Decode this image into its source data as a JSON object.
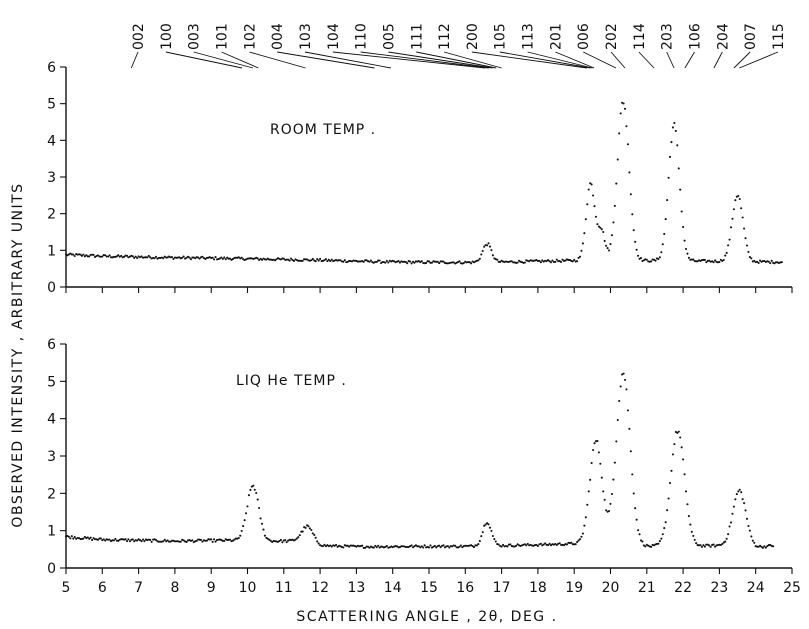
{
  "chart_data": {
    "type": "scatter",
    "xlabel": "SCATTERING ANGLE , 2θ, DEG .",
    "ylabel": "OBSERVED INTENSITY , ARBITRARY UNITS",
    "xlim": [
      5,
      25
    ],
    "xticks": [
      5,
      6,
      7,
      8,
      9,
      10,
      11,
      12,
      13,
      14,
      15,
      16,
      17,
      18,
      19,
      20,
      21,
      22,
      23,
      24,
      25
    ],
    "reflections": [
      {
        "label": "002",
        "angle": 6.8
      },
      {
        "label": "100",
        "angle": 9.85
      },
      {
        "label": "003",
        "angle": 10.15
      },
      {
        "label": "101",
        "angle": 10.3
      },
      {
        "label": "102",
        "angle": 11.6
      },
      {
        "label": "004",
        "angle": 13.5
      },
      {
        "label": "103",
        "angle": 13.95
      },
      {
        "label": "104",
        "angle": 16.55
      },
      {
        "label": "110",
        "angle": 16.65
      },
      {
        "label": "005",
        "angle": 16.75
      },
      {
        "label": "111",
        "angle": 16.85
      },
      {
        "label": "112",
        "angle": 17.0
      },
      {
        "label": "200",
        "angle": 19.35
      },
      {
        "label": "105",
        "angle": 19.45
      },
      {
        "label": "113",
        "angle": 19.5
      },
      {
        "label": "201",
        "angle": 19.55
      },
      {
        "label": "006",
        "angle": 20.15
      },
      {
        "label": "202",
        "angle": 20.4
      },
      {
        "label": "114",
        "angle": 21.2
      },
      {
        "label": "203",
        "angle": 21.75
      },
      {
        "label": "106",
        "angle": 22.05
      },
      {
        "label": "204",
        "angle": 22.85
      },
      {
        "label": "007",
        "angle": 23.4
      },
      {
        "label": "115",
        "angle": 23.55
      }
    ],
    "panels": [
      {
        "label": "ROOM TEMP .",
        "ylim": [
          0,
          6
        ],
        "yticks": [
          0,
          1,
          2,
          3,
          4,
          5,
          6
        ],
        "baseline": [
          [
            5.0,
            0.88
          ],
          [
            6.0,
            0.84
          ],
          [
            8.0,
            0.8
          ],
          [
            10.0,
            0.77
          ],
          [
            12.0,
            0.73
          ],
          [
            14.0,
            0.68
          ],
          [
            16.0,
            0.67
          ],
          [
            17.0,
            0.68
          ],
          [
            18.0,
            0.7
          ],
          [
            19.0,
            0.72
          ],
          [
            20.0,
            0.72
          ],
          [
            21.0,
            0.72
          ],
          [
            23.0,
            0.7
          ],
          [
            24.7,
            0.68
          ]
        ],
        "peaks": [
          {
            "center": 16.6,
            "height": 0.5,
            "width": 0.12
          },
          {
            "center": 19.45,
            "height": 2.1,
            "width": 0.12
          },
          {
            "center": 19.75,
            "height": 0.8,
            "width": 0.1
          },
          {
            "center": 20.35,
            "height": 4.35,
            "width": 0.16
          },
          {
            "center": 21.75,
            "height": 3.7,
            "width": 0.15
          },
          {
            "center": 23.5,
            "height": 1.82,
            "width": 0.15
          }
        ],
        "x_start": 5.0,
        "x_end": 24.75
      },
      {
        "label": "LIQ He TEMP .",
        "ylim": [
          0,
          6
        ],
        "yticks": [
          0,
          1,
          2,
          3,
          4,
          5,
          6
        ],
        "baseline": [
          [
            5.0,
            0.84
          ],
          [
            6.0,
            0.76
          ],
          [
            8.0,
            0.72
          ],
          [
            9.5,
            0.74
          ],
          [
            10.6,
            0.72
          ],
          [
            11.3,
            0.72
          ],
          [
            12.0,
            0.6
          ],
          [
            13.0,
            0.57
          ],
          [
            15.0,
            0.58
          ],
          [
            16.0,
            0.58
          ],
          [
            17.0,
            0.6
          ],
          [
            18.0,
            0.62
          ],
          [
            19.0,
            0.65
          ],
          [
            20.0,
            0.66
          ],
          [
            21.0,
            0.58
          ],
          [
            22.0,
            0.58
          ],
          [
            23.0,
            0.6
          ],
          [
            24.0,
            0.55
          ],
          [
            24.5,
            0.6
          ]
        ],
        "peaks": [
          {
            "center": 10.15,
            "height": 1.48,
            "width": 0.16
          },
          {
            "center": 11.65,
            "height": 0.45,
            "width": 0.16
          },
          {
            "center": 16.6,
            "height": 0.65,
            "width": 0.12
          },
          {
            "center": 19.6,
            "height": 2.75,
            "width": 0.17
          },
          {
            "center": 20.35,
            "height": 4.6,
            "width": 0.19
          },
          {
            "center": 21.85,
            "height": 3.1,
            "width": 0.19
          },
          {
            "center": 23.55,
            "height": 1.5,
            "width": 0.18
          }
        ],
        "x_start": 5.0,
        "x_end": 24.5
      }
    ]
  }
}
